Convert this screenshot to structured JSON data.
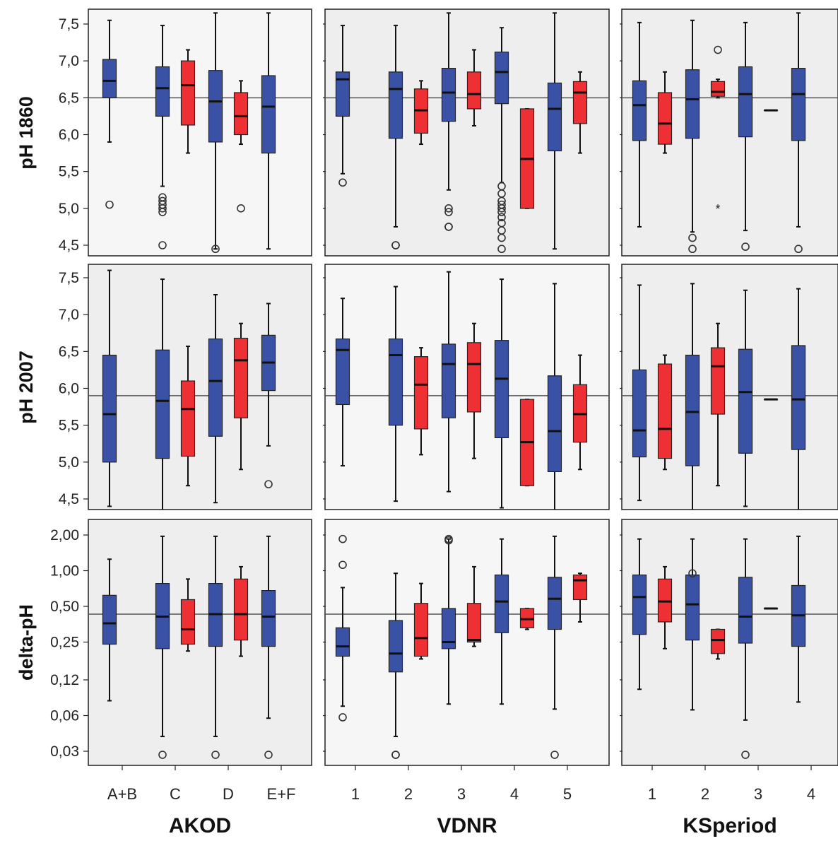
{
  "colors": {
    "blue": "#3A52A5",
    "red": "#EE3035",
    "panel_bg_light": "#F6F6F6",
    "panel_bg_dark": "#EEEEEE",
    "outline": "#222222",
    "reference_line": "#555555"
  },
  "row_labels": [
    "pH 1860",
    "pH 2007",
    "delta-pH"
  ],
  "column_titles": [
    "AKOD",
    "VDNR",
    "KSperiod"
  ],
  "chart_data": {
    "type": "boxplot",
    "layout": "3 rows x 3 columns grid of grouped box plots",
    "legend": "none",
    "grid": false,
    "colors_meaning": "blue and red boxes paired per category (group labels not printed)",
    "y_axes": [
      {
        "row": "pH 1860",
        "scale": "linear",
        "ylim": [
          4.4,
          7.65
        ],
        "ticks": [
          4.5,
          5.0,
          5.5,
          6.0,
          6.5,
          7.0,
          7.5
        ],
        "tick_labels": [
          "4,5",
          "5,0",
          "5,5",
          "6,0",
          "6,5",
          "7,0",
          "7,5"
        ],
        "reference_line": 6.5
      },
      {
        "row": "pH 2007",
        "scale": "linear",
        "ylim": [
          4.35,
          7.65
        ],
        "ticks": [
          4.5,
          5.0,
          5.5,
          6.0,
          6.5,
          7.0,
          7.5
        ],
        "tick_labels": [
          "4,5",
          "5,0",
          "5,5",
          "6,0",
          "6,5",
          "7,0",
          "7,5"
        ],
        "reference_line": 5.9
      },
      {
        "row": "delta-pH",
        "scale": "log",
        "ylim": [
          0.027,
          2.35
        ],
        "ticks": [
          0.03,
          0.06,
          0.12,
          0.25,
          0.5,
          1.0,
          2.0
        ],
        "tick_labels": [
          "0,03",
          "0,06",
          "0,12",
          "0,25",
          "0,50",
          "1,00",
          "2,00"
        ],
        "reference_line": 0.43
      }
    ],
    "columns": [
      {
        "title": "AKOD",
        "categories": [
          "A+B",
          "C",
          "D",
          "E+F"
        ],
        "series": {
          "blue": [
            [
              {
                "lw": 5.9,
                "q1": 6.5,
                "med": 6.73,
                "q3": 7.02,
                "hw": 7.55,
                "out": [
                  5.05
                ]
              },
              {
                "lw": 4.4,
                "q1": 5.0,
                "med": 5.65,
                "q3": 6.45,
                "hw": 7.6,
                "out": []
              },
              {
                "lw": 0.08,
                "q1": 0.24,
                "med": 0.36,
                "q3": 0.62,
                "hw": 1.25,
                "out": []
              }
            ],
            [
              {
                "lw": 5.3,
                "q1": 6.25,
                "med": 6.63,
                "q3": 6.92,
                "hw": 7.48,
                "out": [
                  5.15,
                  5.1,
                  5.05,
                  5.0,
                  4.95,
                  4.5
                ]
              },
              {
                "lw": 4.35,
                "q1": 5.05,
                "med": 5.83,
                "q3": 6.52,
                "hw": 7.48,
                "out": []
              },
              {
                "lw": 0.04,
                "q1": 0.22,
                "med": 0.41,
                "q3": 0.78,
                "hw": 1.95,
                "out": [
                  0.028
                ]
              }
            ],
            [
              {
                "lw": 4.45,
                "q1": 5.9,
                "med": 6.45,
                "q3": 6.87,
                "hw": 7.65,
                "out": [
                  4.45
                ]
              },
              {
                "lw": 4.45,
                "q1": 5.35,
                "med": 6.1,
                "q3": 6.67,
                "hw": 7.27,
                "out": []
              },
              {
                "lw": 0.04,
                "q1": 0.23,
                "med": 0.43,
                "q3": 0.78,
                "hw": 1.95,
                "out": [
                  0.028
                ]
              }
            ],
            [
              {
                "lw": 4.45,
                "q1": 5.75,
                "med": 6.38,
                "q3": 6.8,
                "hw": 7.65,
                "out": []
              },
              {
                "lw": 5.22,
                "q1": 5.97,
                "med": 6.35,
                "q3": 6.72,
                "hw": 7.15,
                "out": [
                  4.7
                ]
              },
              {
                "lw": 0.057,
                "q1": 0.23,
                "med": 0.41,
                "q3": 0.68,
                "hw": 1.95,
                "out": [
                  0.028
                ]
              }
            ]
          ],
          "red": [
            null,
            [
              {
                "lw": 5.75,
                "q1": 6.13,
                "med": 6.67,
                "q3": 7.0,
                "hw": 7.15,
                "out": []
              },
              {
                "lw": 4.68,
                "q1": 5.08,
                "med": 5.72,
                "q3": 6.1,
                "hw": 6.57,
                "out": []
              },
              {
                "lw": 0.21,
                "q1": 0.24,
                "med": 0.32,
                "q3": 0.57,
                "hw": 0.85,
                "out": []
              }
            ],
            [
              {
                "lw": 5.87,
                "q1": 6.0,
                "med": 6.25,
                "q3": 6.57,
                "hw": 6.73,
                "out": [
                  5.0
                ]
              },
              {
                "lw": 4.9,
                "q1": 5.6,
                "med": 6.38,
                "q3": 6.68,
                "hw": 6.88,
                "out": []
              },
              {
                "lw": 0.19,
                "q1": 0.26,
                "med": 0.43,
                "q3": 0.85,
                "hw": 1.08,
                "out": []
              }
            ],
            null
          ]
        }
      },
      {
        "title": "VDNR",
        "categories": [
          "1",
          "2",
          "3",
          "4",
          "5"
        ],
        "series": {
          "blue": [
            [
              {
                "lw": 5.47,
                "q1": 6.25,
                "med": 6.75,
                "q3": 6.85,
                "hw": 7.48,
                "out": [
                  5.35
                ]
              },
              {
                "lw": 4.95,
                "q1": 5.78,
                "med": 6.52,
                "q3": 6.67,
                "hw": 7.22,
                "out": []
              },
              {
                "lw": 0.072,
                "q1": 0.19,
                "med": 0.23,
                "q3": 0.33,
                "hw": 0.72,
                "out": [
                  0.058,
                  1.12,
                  1.85
                ]
              }
            ],
            [
              {
                "lw": 4.75,
                "q1": 5.95,
                "med": 6.62,
                "q3": 6.85,
                "hw": 7.48,
                "out": [
                  4.5,
                  4.5
                ]
              },
              {
                "lw": 4.47,
                "q1": 5.5,
                "med": 6.45,
                "q3": 6.67,
                "hw": 7.38,
                "out": []
              },
              {
                "lw": 0.04,
                "q1": 0.14,
                "med": 0.2,
                "q3": 0.38,
                "hw": 0.95,
                "out": [
                  0.028,
                  0.028
                ]
              }
            ],
            [
              {
                "lw": 5.25,
                "q1": 6.18,
                "med": 6.57,
                "q3": 6.9,
                "hw": 7.65,
                "out": [
                  5.0,
                  4.95,
                  4.75,
                  4.75
                ]
              },
              {
                "lw": 4.6,
                "q1": 5.6,
                "med": 6.33,
                "q3": 6.6,
                "hw": 7.58,
                "out": []
              },
              {
                "lw": 0.075,
                "q1": 0.22,
                "med": 0.25,
                "q3": 0.48,
                "hw": 1.85,
                "out": [
                  1.85,
                  1.8
                ]
              }
            ],
            [
              {
                "lw": 5.35,
                "q1": 6.42,
                "med": 6.85,
                "q3": 7.12,
                "hw": 7.45,
                "out": [
                  5.3,
                  5.2,
                  5.1,
                  5.05,
                  5.0,
                  4.95,
                  4.88,
                  4.8,
                  4.7,
                  4.6,
                  4.45
                ]
              },
              {
                "lw": 4.38,
                "q1": 5.33,
                "med": 6.13,
                "q3": 6.65,
                "hw": 7.48,
                "out": []
              },
              {
                "lw": 0.075,
                "q1": 0.3,
                "med": 0.55,
                "q3": 0.92,
                "hw": 1.85,
                "out": []
              }
            ],
            [
              {
                "lw": 4.45,
                "q1": 5.78,
                "med": 6.35,
                "q3": 6.7,
                "hw": 7.65,
                "out": []
              },
              {
                "lw": 4.35,
                "q1": 4.87,
                "med": 5.42,
                "q3": 6.17,
                "hw": 7.42,
                "out": []
              },
              {
                "lw": 0.068,
                "q1": 0.32,
                "med": 0.58,
                "q3": 0.88,
                "hw": 1.95,
                "out": [
                  0.028
                ]
              }
            ]
          ],
          "red": [
            null,
            [
              {
                "lw": 5.87,
                "q1": 6.02,
                "med": 6.33,
                "q3": 6.62,
                "hw": 6.73,
                "out": []
              },
              {
                "lw": 5.1,
                "q1": 5.45,
                "med": 6.05,
                "q3": 6.43,
                "hw": 6.55,
                "out": []
              },
              {
                "lw": 0.18,
                "q1": 0.19,
                "med": 0.27,
                "q3": 0.53,
                "hw": 0.78,
                "out": []
              }
            ],
            [
              {
                "lw": 6.12,
                "q1": 6.35,
                "med": 6.55,
                "q3": 6.85,
                "hw": 7.15,
                "out": []
              },
              {
                "lw": 5.05,
                "q1": 5.68,
                "med": 6.33,
                "q3": 6.62,
                "hw": 6.88,
                "out": []
              },
              {
                "lw": 0.23,
                "q1": 0.25,
                "med": 0.26,
                "q3": 0.53,
                "hw": 1.08,
                "out": []
              }
            ],
            [
              {
                "lw": 5.0,
                "q1": 5.0,
                "med": 5.67,
                "q3": 6.35,
                "hw": 6.35,
                "out": []
              },
              {
                "lw": 4.68,
                "q1": 4.68,
                "med": 5.27,
                "q3": 5.85,
                "hw": 5.85,
                "out": []
              },
              {
                "lw": 0.32,
                "q1": 0.33,
                "med": 0.39,
                "q3": 0.48,
                "hw": 0.48,
                "out": []
              }
            ],
            [
              {
                "lw": 5.75,
                "q1": 6.15,
                "med": 6.57,
                "q3": 6.72,
                "hw": 6.85,
                "out": []
              },
              {
                "lw": 4.9,
                "q1": 5.27,
                "med": 5.65,
                "q3": 6.05,
                "hw": 6.45,
                "out": []
              },
              {
                "lw": 0.37,
                "q1": 0.57,
                "med": 0.83,
                "q3": 0.92,
                "hw": 0.95,
                "out": []
              }
            ]
          ]
        }
      },
      {
        "title": "KSperiod",
        "categories": [
          "1",
          "2",
          "3",
          "4"
        ],
        "series": {
          "blue": [
            [
              {
                "lw": 4.75,
                "q1": 5.92,
                "med": 6.4,
                "q3": 6.73,
                "hw": 7.52,
                "out": []
              },
              {
                "lw": 4.48,
                "q1": 5.07,
                "med": 5.43,
                "q3": 6.25,
                "hw": 7.4,
                "out": []
              },
              {
                "lw": 0.1,
                "q1": 0.29,
                "med": 0.6,
                "q3": 0.92,
                "hw": 1.85,
                "out": []
              }
            ],
            [
              {
                "lw": 4.68,
                "q1": 5.95,
                "med": 6.48,
                "q3": 6.88,
                "hw": 7.55,
                "out": [
                  4.6,
                  4.45
                ]
              },
              {
                "lw": 4.35,
                "q1": 4.95,
                "med": 5.68,
                "q3": 6.45,
                "hw": 7.42,
                "out": []
              },
              {
                "lw": 0.067,
                "q1": 0.26,
                "med": 0.52,
                "q3": 0.92,
                "hw": 1.85,
                "out": [
                  0.95
                ]
              }
            ],
            [
              {
                "lw": 4.7,
                "q1": 5.97,
                "med": 6.55,
                "q3": 6.92,
                "hw": 7.52,
                "out": [
                  4.48
                ]
              },
              {
                "lw": 4.4,
                "q1": 5.12,
                "med": 5.95,
                "q3": 6.53,
                "hw": 7.33,
                "out": []
              },
              {
                "lw": 0.055,
                "q1": 0.245,
                "med": 0.41,
                "q3": 0.88,
                "hw": 1.85,
                "out": [
                  0.028
                ]
              }
            ],
            [
              {
                "lw": 4.75,
                "q1": 5.92,
                "med": 6.55,
                "q3": 6.9,
                "hw": 7.65,
                "out": [
                  4.45
                ]
              },
              {
                "lw": 4.35,
                "q1": 5.17,
                "med": 5.85,
                "q3": 6.58,
                "hw": 7.35,
                "out": []
              },
              {
                "lw": 0.078,
                "q1": 0.23,
                "med": 0.42,
                "q3": 0.75,
                "hw": 1.95,
                "out": []
              }
            ]
          ],
          "red": [
            [
              {
                "lw": 5.75,
                "q1": 5.87,
                "med": 6.15,
                "q3": 6.57,
                "hw": 6.85,
                "out": []
              },
              {
                "lw": 4.9,
                "q1": 5.05,
                "med": 5.45,
                "q3": 6.33,
                "hw": 6.45,
                "out": []
              },
              {
                "lw": 0.22,
                "q1": 0.37,
                "med": 0.55,
                "q3": 0.85,
                "hw": 1.08,
                "out": []
              }
            ],
            [
              {
                "lw": 6.5,
                "q1": 6.52,
                "med": 6.58,
                "q3": 6.72,
                "hw": 6.75,
                "out": [
                  7.15
                ],
                "extreme": [
                  5.0
                ]
              },
              {
                "lw": 4.68,
                "q1": 5.65,
                "med": 6.3,
                "q3": 6.55,
                "hw": 6.88,
                "out": []
              },
              {
                "lw": 0.18,
                "q1": 0.2,
                "med": 0.26,
                "q3": 0.32,
                "hw": 0.32,
                "out": []
              }
            ],
            [
              {
                "lw": 6.33,
                "q1": 6.33,
                "med": 6.33,
                "q3": 6.33,
                "hw": 6.33,
                "out": []
              },
              {
                "lw": 5.85,
                "q1": 5.85,
                "med": 5.85,
                "q3": 5.85,
                "hw": 5.85,
                "out": []
              },
              {
                "lw": 0.48,
                "q1": 0.48,
                "med": 0.48,
                "q3": 0.48,
                "hw": 0.48,
                "out": []
              }
            ],
            null
          ]
        }
      }
    ]
  }
}
